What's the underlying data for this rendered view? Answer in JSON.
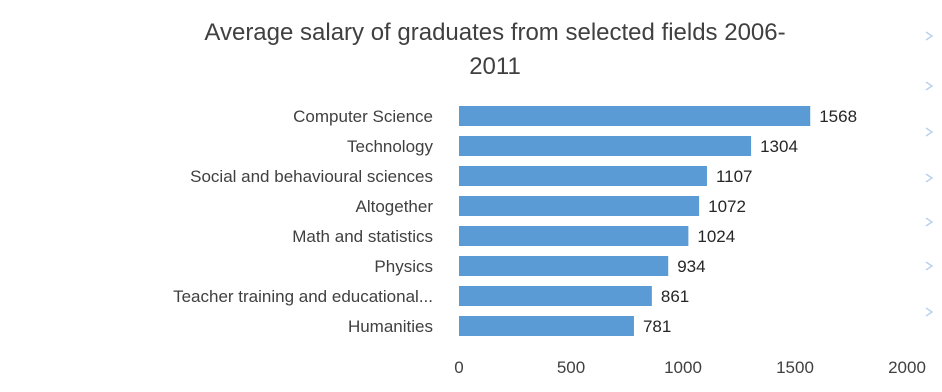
{
  "chart_data": {
    "type": "bar",
    "orientation": "horizontal",
    "title_lines": [
      "Average salary of graduates from selected fields 2006-",
      "2011"
    ],
    "categories": [
      "Computer Science",
      "Technology",
      "Social and behavioural sciences",
      "Altogether",
      "Math and statistics",
      "Physics",
      "Teacher training and educational...",
      "Humanities"
    ],
    "values": [
      1568,
      1304,
      1107,
      1072,
      1024,
      934,
      861,
      781
    ],
    "xlim": [
      0,
      2000
    ],
    "xticks": [
      0,
      500,
      1000,
      1500,
      2000
    ],
    "xlabel": "",
    "ylabel": "",
    "grid": false,
    "legend": "none",
    "bar_color": "#5b9bd5",
    "data_labels": true
  }
}
